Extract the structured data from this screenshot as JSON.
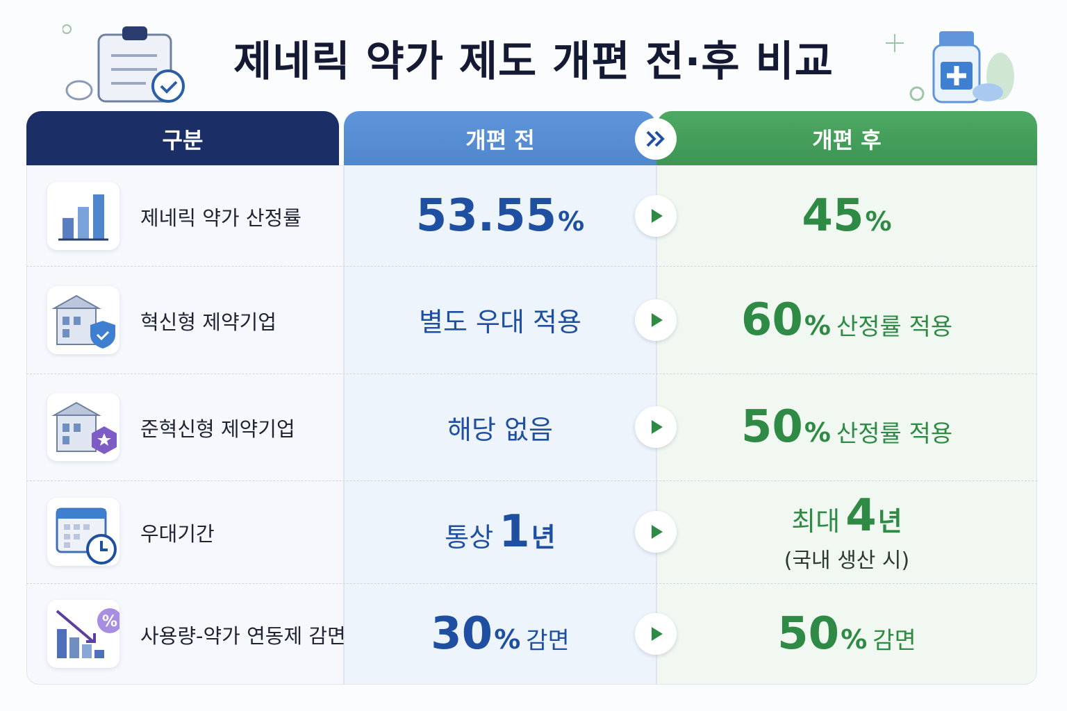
{
  "title": "제네릭 약가 제도 개편 전·후 비교",
  "header": [
    "구분",
    "개편 전",
    "개편 후"
  ],
  "rows": [
    {
      "label": "제네릭 약가 산정률",
      "before": {
        "number": "53.55",
        "unit": "%"
      },
      "after": {
        "number": "45",
        "unit": "%"
      }
    },
    {
      "label": "혁신형 제약기업",
      "before": {
        "text": "별도 우대 적용"
      },
      "after": {
        "number": "60",
        "unit": "%",
        "text": "산정률 적용"
      }
    },
    {
      "label": "준혁신형 제약기업",
      "before": {
        "text": "해당 없음"
      },
      "after": {
        "number": "50",
        "unit": "%",
        "text": "산정률 적용"
      }
    },
    {
      "label": "우대기간",
      "before": {
        "prefix": "통상",
        "number": "1",
        "unit": "년"
      },
      "after": {
        "prefix": "최대",
        "number": "4",
        "unit": "년",
        "note": "(국내 생산 시)"
      }
    },
    {
      "label": "사용량-약가 연동제 감면",
      "before": {
        "number": "30",
        "unit": "%",
        "text": "감면"
      },
      "after": {
        "number": "50",
        "unit": "%",
        "text": "감면"
      }
    }
  ]
}
